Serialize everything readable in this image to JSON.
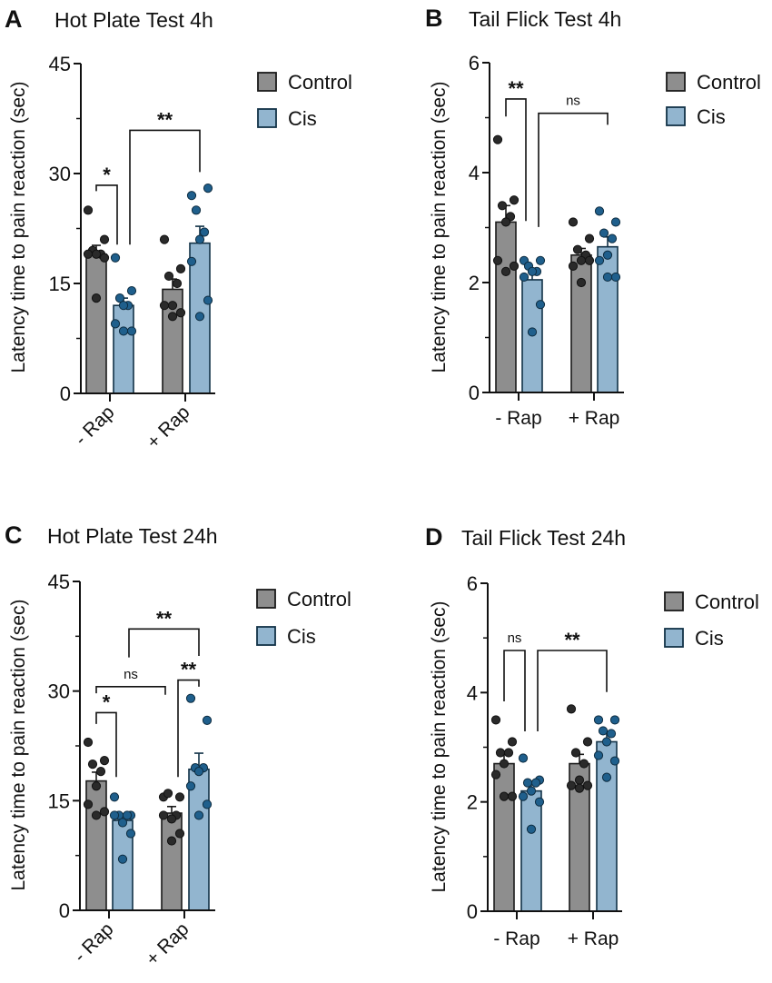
{
  "colors": {
    "control_bar": "#8e8e8e",
    "control_dot": "#2a2a2a",
    "cis_bar": "#92b5cf",
    "cis_dot": "#1f5f8c",
    "cis_edge": "#123247",
    "axis": "#111111"
  },
  "chart_data": [
    {
      "type": "bar",
      "panel": "A",
      "title": "Hot Plate Test 4h",
      "ylabel": "Latency time to pain reaction (sec)",
      "ylim": [
        0,
        45
      ],
      "yticks": [
        0,
        15,
        30,
        45
      ],
      "yminor": [
        7.5,
        22.5,
        37.5
      ],
      "categories": [
        "- Rap",
        "+ Rap"
      ],
      "xlabels_rotated": true,
      "legend": [
        "Control",
        "Cis"
      ],
      "legend_position": "right",
      "groups": [
        {
          "category": "- Rap",
          "series": "Control",
          "mean": 19.0,
          "sem": 1.2,
          "points": [
            25,
            21,
            19.5,
            19,
            19,
            19,
            18.5,
            13
          ]
        },
        {
          "category": "- Rap",
          "series": "Cis",
          "mean": 12.0,
          "sem": 1.0,
          "points": [
            18.5,
            14,
            13,
            12,
            12,
            9.5,
            8.5,
            8.5
          ]
        },
        {
          "category": "+ Rap",
          "series": "Control",
          "mean": 14.2,
          "sem": 1.4,
          "points": [
            21,
            17,
            16,
            15,
            12,
            12,
            11,
            10.5
          ]
        },
        {
          "category": "+ Rap",
          "series": "Cis",
          "mean": 20.5,
          "sem": 2.3,
          "points": [
            27,
            28,
            25,
            22,
            21,
            18,
            12.7,
            10.5
          ]
        }
      ],
      "brackets": [
        {
          "from": 0,
          "to": 1,
          "y": 28.4,
          "left_end": 27.6,
          "right_end": 20.3,
          "label": "*"
        },
        {
          "from": 1,
          "to": 3,
          "y": 35.9,
          "left_end": 20.3,
          "right_end": 30.2,
          "label": "**"
        }
      ]
    },
    {
      "type": "bar",
      "panel": "B",
      "title": "Tail Flick Test 4h",
      "ylabel": "Latency time to pain reaction (sec)",
      "ylim": [
        0,
        6
      ],
      "yticks": [
        0,
        2,
        4,
        6
      ],
      "yminor": [
        1,
        3,
        5
      ],
      "categories": [
        "- Rap",
        "+ Rap"
      ],
      "xlabels_rotated": false,
      "legend": [
        "Control",
        "Cis"
      ],
      "legend_position": "right",
      "groups": [
        {
          "category": "- Rap",
          "series": "Control",
          "mean": 3.1,
          "sem": 0.3,
          "points": [
            4.6,
            3.5,
            3.4,
            3.2,
            3.1,
            2.4,
            2.3,
            2.2
          ]
        },
        {
          "category": "- Rap",
          "series": "Cis",
          "mean": 2.05,
          "sem": 0.15,
          "points": [
            2.4,
            2.4,
            2.3,
            2.2,
            2.2,
            2.1,
            1.6,
            1.1
          ]
        },
        {
          "category": "+ Rap",
          "series": "Control",
          "mean": 2.5,
          "sem": 0.12,
          "points": [
            3.1,
            2.8,
            2.6,
            2.5,
            2.4,
            2.3,
            2.4,
            2.0
          ]
        },
        {
          "category": "+ Rap",
          "series": "Cis",
          "mean": 2.65,
          "sem": 0.18,
          "points": [
            3.3,
            3.1,
            2.9,
            2.8,
            2.5,
            2.4,
            2.1,
            2.1
          ]
        }
      ],
      "brackets": [
        {
          "from": 0,
          "to": 1,
          "y": 5.34,
          "left_end": 5.02,
          "right_end": 3.12,
          "label": "**"
        },
        {
          "from": 1,
          "to": 3,
          "y": 5.08,
          "left_end": 3.01,
          "right_end": 4.87,
          "label": "ns"
        }
      ]
    },
    {
      "type": "bar",
      "panel": "C",
      "title": "Hot Plate Test 24h",
      "ylabel": "Latency time to pain reaction (sec)",
      "ylim": [
        0,
        45
      ],
      "yticks": [
        0,
        15,
        30,
        45
      ],
      "yminor": [
        7.5,
        22.5,
        37.5
      ],
      "categories": [
        "- Rap",
        "+ Rap"
      ],
      "xlabels_rotated": true,
      "legend": [
        "Control",
        "Cis"
      ],
      "legend_position": "right",
      "groups": [
        {
          "category": "- Rap",
          "series": "Control",
          "mean": 17.7,
          "sem": 1.2,
          "points": [
            23,
            20.5,
            20,
            19,
            17,
            14.5,
            13.5,
            13
          ]
        },
        {
          "category": "- Rap",
          "series": "Cis",
          "mean": 12.3,
          "sem": 0.8,
          "points": [
            15.5,
            13,
            13,
            13,
            12,
            13,
            10.5,
            7
          ]
        },
        {
          "category": "+ Rap",
          "series": "Control",
          "mean": 13.3,
          "sem": 0.9,
          "points": [
            15.5,
            15.5,
            16,
            13,
            12.5,
            13,
            10.5,
            9.5
          ]
        },
        {
          "category": "+ Rap",
          "series": "Cis",
          "mean": 19.3,
          "sem": 2.2,
          "points": [
            29,
            26,
            19.5,
            19.5,
            19,
            17,
            14.5,
            13
          ]
        }
      ],
      "brackets": [
        {
          "from": 0,
          "to": 1,
          "y": 27.05,
          "left_end": 25.5,
          "right_end": 18.25,
          "label": "*"
        },
        {
          "from": 0,
          "to": 2,
          "y": 30.6,
          "left_end": 29.7,
          "right_end": 29.5,
          "label": "ns"
        },
        {
          "from": 2,
          "to": 3,
          "y": 31.5,
          "left_end": 18.25,
          "right_end": 30.6,
          "label": "**"
        },
        {
          "from": 1,
          "to": 3,
          "y": 38.5,
          "left_end": 34.6,
          "right_end": 34.8,
          "label": "**"
        }
      ]
    },
    {
      "type": "bar",
      "panel": "D",
      "title": "Tail Flick Test 24h",
      "ylabel": "Latency time to pain reaction (sec)",
      "ylim": [
        0,
        6
      ],
      "yticks": [
        0,
        2,
        4,
        6
      ],
      "yminor": [
        1,
        3,
        5
      ],
      "categories": [
        "- Rap",
        "+ Rap"
      ],
      "xlabels_rotated": false,
      "legend": [
        "Control",
        "Cis"
      ],
      "legend_position": "right",
      "groups": [
        {
          "category": "- Rap",
          "series": "Control",
          "mean": 2.7,
          "sem": 0.17,
          "points": [
            3.5,
            3.1,
            2.9,
            2.9,
            2.7,
            2.5,
            2.1,
            2.1
          ]
        },
        {
          "category": "- Rap",
          "series": "Cis",
          "mean": 2.2,
          "sem": 0.13,
          "points": [
            2.8,
            2.4,
            2.35,
            2.35,
            2.2,
            2.1,
            2.0,
            1.5
          ]
        },
        {
          "category": "+ Rap",
          "series": "Control",
          "mean": 2.7,
          "sem": 0.17,
          "points": [
            3.7,
            3.1,
            2.9,
            2.7,
            2.4,
            2.3,
            2.3,
            2.25
          ]
        },
        {
          "category": "+ Rap",
          "series": "Cis",
          "mean": 3.1,
          "sem": 0.15,
          "points": [
            3.5,
            3.5,
            3.3,
            3.25,
            3.1,
            2.85,
            2.75,
            2.45
          ]
        }
      ],
      "brackets": [
        {
          "from": 0,
          "to": 1,
          "y": 4.77,
          "left_end": 3.84,
          "right_end": 3.29,
          "label": "ns"
        },
        {
          "from": 1,
          "to": 3,
          "y": 4.77,
          "left_end": 3.29,
          "right_end": 4.01,
          "label": "**"
        }
      ]
    }
  ]
}
